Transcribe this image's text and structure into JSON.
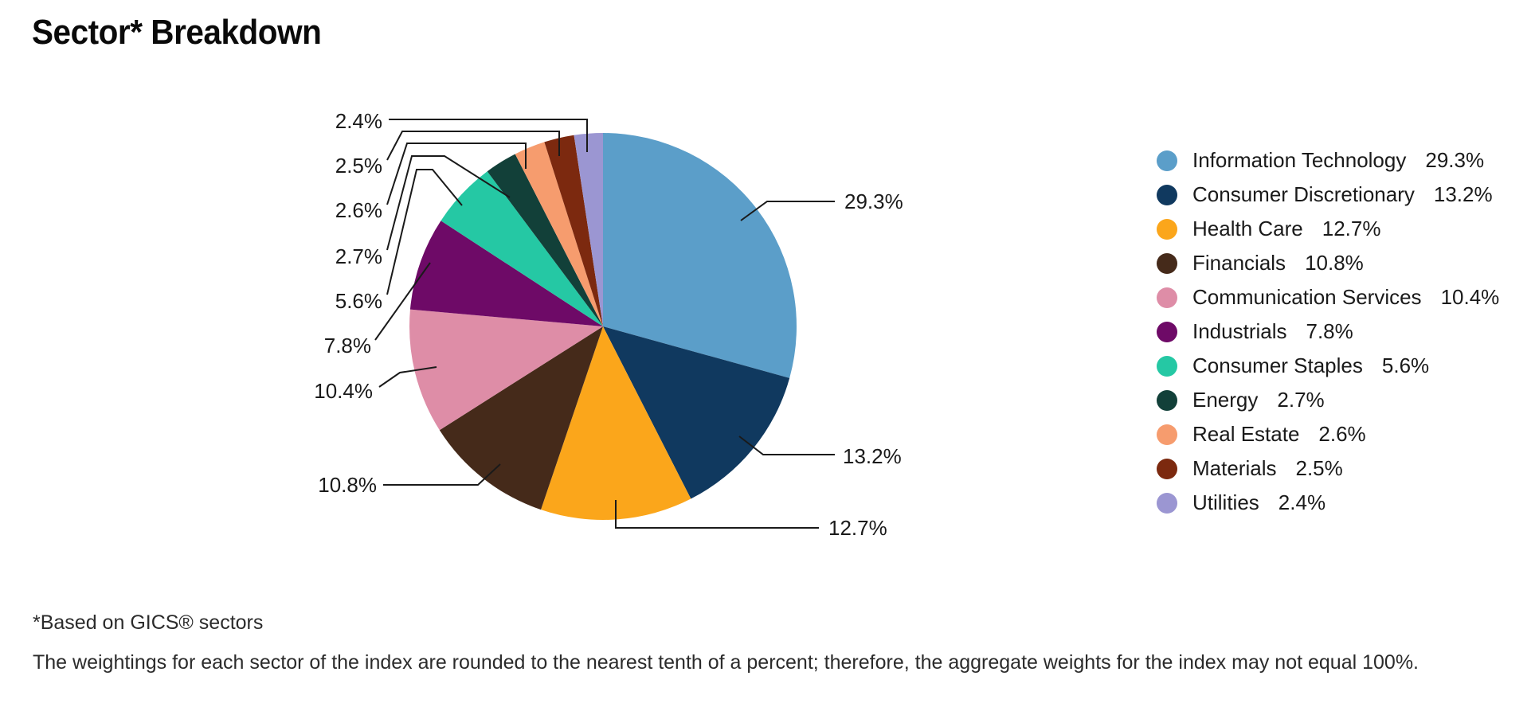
{
  "title": "Sector* Breakdown",
  "chart_data": {
    "type": "pie",
    "title": "Sector* Breakdown",
    "start_angle": "12 o'clock",
    "direction": "clockwise",
    "legend_position": "right",
    "value_unit": "%",
    "series": [
      {
        "label": "Information Technology",
        "value": 29.3,
        "display": "29.3%",
        "color": "#5B9EC9"
      },
      {
        "label": "Consumer Discretionary",
        "value": 13.2,
        "display": "13.2%",
        "color": "#10395F"
      },
      {
        "label": "Health Care",
        "value": 12.7,
        "display": "12.7%",
        "color": "#FBA61B"
      },
      {
        "label": "Financials",
        "value": 10.8,
        "display": "10.8%",
        "color": "#452A1A"
      },
      {
        "label": "Communication Services",
        "value": 10.4,
        "display": "10.4%",
        "color": "#DE8DA7"
      },
      {
        "label": "Industrials",
        "value": 7.8,
        "display": "7.8%",
        "color": "#6E0A67"
      },
      {
        "label": "Consumer Staples",
        "value": 5.6,
        "display": "5.6%",
        "color": "#25C8A4"
      },
      {
        "label": "Energy",
        "value": 2.7,
        "display": "2.7%",
        "color": "#124039"
      },
      {
        "label": "Real Estate",
        "value": 2.6,
        "display": "2.6%",
        "color": "#F69C6E"
      },
      {
        "label": "Materials",
        "value": 2.5,
        "display": "2.5%",
        "color": "#7C290F"
      },
      {
        "label": "Utilities",
        "value": 2.4,
        "display": "2.4%",
        "color": "#9B96D2"
      }
    ]
  },
  "footnotes": {
    "line1": "*Based on GICS® sectors",
    "line2": "The weightings for each sector of the index are rounded to the nearest tenth of a percent; therefore, the aggregate weights for the index may not equal 100%."
  }
}
